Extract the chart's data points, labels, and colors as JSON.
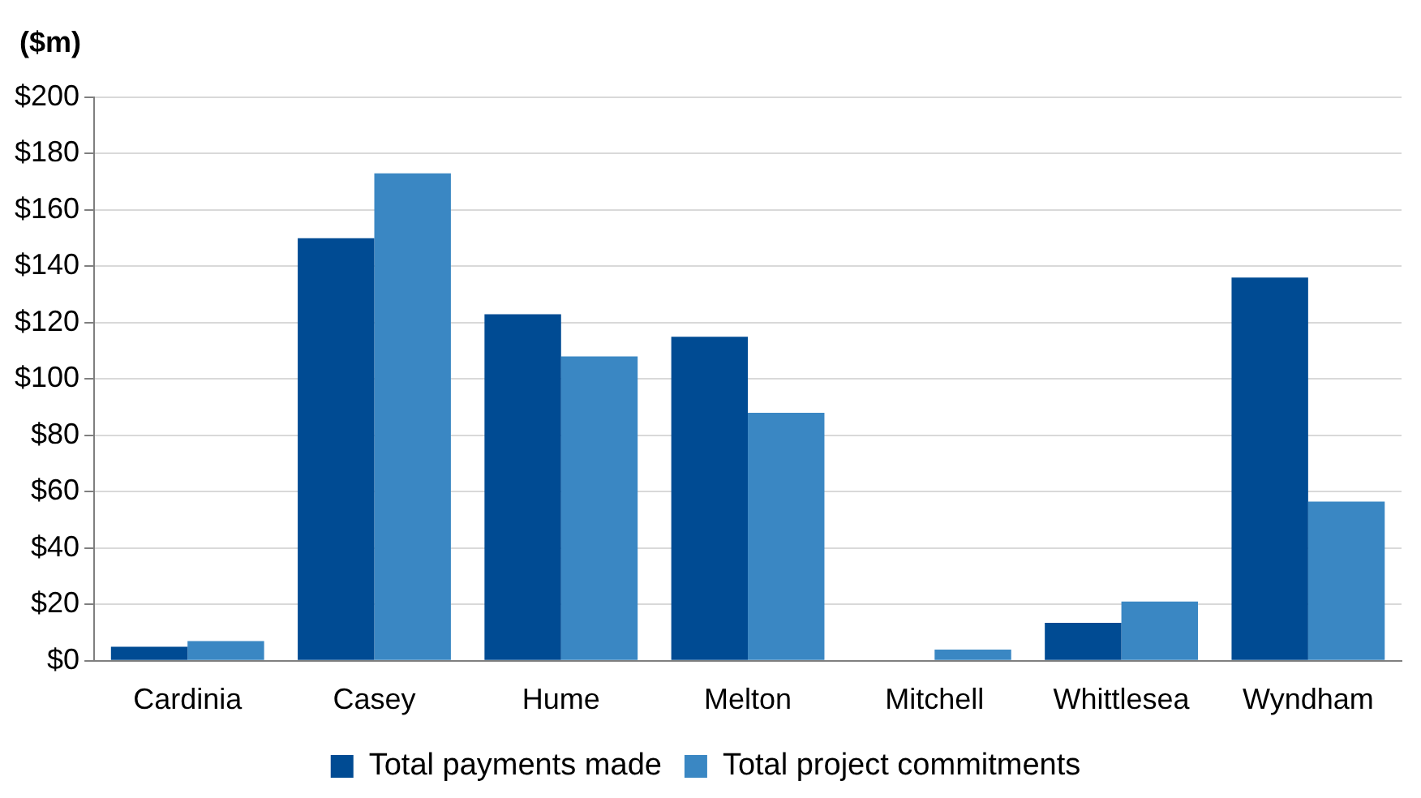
{
  "chart_data": {
    "type": "bar",
    "ylabel": "($m)",
    "categories": [
      "Cardinia",
      "Casey",
      "Hume",
      "Melton",
      "Mitchell",
      "Whittlesea",
      "Wyndham"
    ],
    "series": [
      {
        "name": "Total payments made",
        "color": "#004b93",
        "values": [
          5,
          150,
          123,
          115,
          0,
          13.5,
          136
        ]
      },
      {
        "name": "Total project commitments",
        "color": "#3a87c3",
        "values": [
          7,
          173,
          108,
          88,
          4,
          21,
          56.5
        ]
      }
    ],
    "ylim": [
      0,
      200
    ],
    "yticks": [
      {
        "value": 0,
        "label": "$0"
      },
      {
        "value": 20,
        "label": "$20"
      },
      {
        "value": 40,
        "label": "$40"
      },
      {
        "value": 60,
        "label": "$60"
      },
      {
        "value": 80,
        "label": "$80"
      },
      {
        "value": 100,
        "label": "$100"
      },
      {
        "value": 120,
        "label": "$120"
      },
      {
        "value": 140,
        "label": "$140"
      },
      {
        "value": 160,
        "label": "$160"
      },
      {
        "value": 180,
        "label": "$180"
      },
      {
        "value": 200,
        "label": "$200"
      }
    ],
    "grid": "y",
    "legend": "bottom"
  }
}
